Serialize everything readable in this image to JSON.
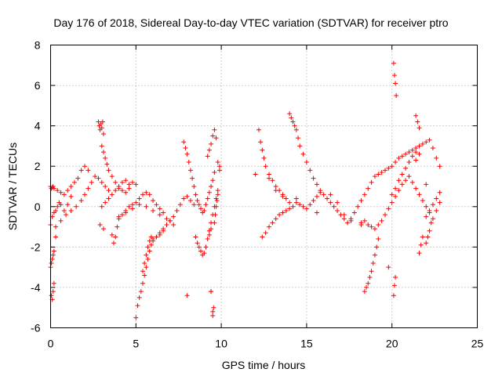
{
  "chart_data": {
    "type": "scatter",
    "title": "Day 176 of 2018, Sidereal Day-to-day VTEC variation (SDTVAR) for receiver ptro",
    "xlabel": "GPS time / hours",
    "ylabel": "SDTVAR / TECUs",
    "xlim": [
      0,
      25
    ],
    "ylim": [
      -6,
      8
    ],
    "x_ticks": [
      0,
      5,
      10,
      15,
      20,
      25
    ],
    "y_ticks": [
      -6,
      -4,
      -2,
      0,
      2,
      4,
      6,
      8
    ],
    "x_tick_labels": [
      "0",
      "5",
      "10",
      "15",
      "20",
      "25"
    ],
    "y_tick_labels": [
      "-6",
      "-4",
      "-2",
      "0",
      "2",
      "4",
      "6",
      "8"
    ],
    "grid": true,
    "marker": "+",
    "series": [
      {
        "name": "SDTVAR",
        "color": "#ff0000",
        "x": [
          0.0,
          0.05,
          0.1,
          0.15,
          0.2,
          0.1,
          0.15,
          0.05,
          0.2,
          0.3,
          0.1,
          0.2,
          0.3,
          0.4,
          0.5,
          0.6,
          0.8,
          1.0,
          1.2,
          0.0,
          0.2,
          0.4,
          0.6,
          0.8,
          1.0,
          1.2,
          1.4,
          1.6,
          1.8,
          2.0,
          2.2,
          0.0,
          0.3,
          0.6,
          0.9,
          1.2,
          1.5,
          1.8,
          2.0,
          2.2,
          2.4,
          2.6,
          2.8,
          3.0,
          3.2,
          3.4,
          2.8,
          2.85,
          2.9,
          2.95,
          3.0,
          3.05,
          3.1,
          3.0,
          3.1,
          3.2,
          3.3,
          3.4,
          3.6,
          3.8,
          4.0,
          4.2,
          4.4,
          4.6,
          3.0,
          3.2,
          3.4,
          3.6,
          3.8,
          4.0,
          4.2,
          4.4,
          4.6,
          4.8,
          5.0,
          3.6,
          3.7,
          3.8,
          3.9,
          4.0,
          4.2,
          4.4,
          4.6,
          4.8,
          5.0,
          5.2,
          5.4,
          5.6,
          5.8,
          6.0,
          6.2,
          6.4,
          6.6,
          4.0,
          4.4,
          4.8,
          5.2,
          5.6,
          6.0,
          6.4,
          6.8,
          7.2,
          5.0,
          5.1,
          5.2,
          5.3,
          5.4,
          5.5,
          5.6,
          5.7,
          5.8,
          5.9,
          6.0,
          6.2,
          6.4,
          6.6,
          6.8,
          7.0,
          5.4,
          5.5,
          5.6,
          5.7,
          5.8,
          5.9,
          6.0,
          6.2,
          6.4,
          6.6,
          6.8,
          7.0,
          7.2,
          7.4,
          7.6,
          7.8,
          8.0,
          8.2,
          8.4,
          7.8,
          7.9,
          8.0,
          8.1,
          8.2,
          8.3,
          8.4,
          8.5,
          8.6,
          8.7,
          8.8,
          8.9,
          9.0,
          9.1,
          9.2,
          9.3,
          9.4,
          9.5,
          9.6,
          8.5,
          8.6,
          8.7,
          8.8,
          8.9,
          9.0,
          9.1,
          9.2,
          9.3,
          9.4,
          9.5,
          9.6,
          9.7,
          9.8,
          9.2,
          9.3,
          9.4,
          9.5,
          9.6,
          9.7,
          9.8,
          9.9,
          9.4,
          9.5,
          9.55,
          9.6,
          9.65,
          9.7,
          9.75,
          9.8,
          9.9,
          12.2,
          12.3,
          12.4,
          12.5,
          12.6,
          12.8,
          13.0,
          13.2,
          13.4,
          13.6,
          13.8,
          14.0,
          12.4,
          12.6,
          12.8,
          13.0,
          13.2,
          13.4,
          13.6,
          13.8,
          14.0,
          14.2,
          14.4,
          14.6,
          14.8,
          15.0,
          15.2,
          15.4,
          15.6,
          15.8,
          14.0,
          14.1,
          14.2,
          14.3,
          14.4,
          14.5,
          14.6,
          14.8,
          15.0,
          15.2,
          15.4,
          15.6,
          15.8,
          16.0,
          16.2,
          16.4,
          16.6,
          16.8,
          17.0,
          17.2,
          17.4,
          17.6,
          17.8,
          18.0,
          18.2,
          18.4,
          18.6,
          18.8,
          19.0,
          19.2,
          19.4,
          19.6,
          19.8,
          20.0,
          20.2,
          20.4,
          20.6,
          20.8,
          21.0,
          21.2,
          21.4,
          21.6,
          21.8,
          22.0,
          22.2,
          22.4,
          22.6,
          22.8,
          18.2,
          18.4,
          18.6,
          18.8,
          19.0,
          19.2,
          19.4,
          19.6,
          19.8,
          20.0,
          20.2,
          20.4,
          20.6,
          20.8,
          21.0,
          21.2,
          21.4,
          21.6,
          21.8,
          22.0,
          22.2,
          22.4,
          22.6,
          22.8,
          18.4,
          18.5,
          18.6,
          18.7,
          18.8,
          18.9,
          19.0,
          19.1,
          19.2,
          20.1,
          20.15,
          20.2,
          20.25,
          20.1,
          20.15,
          20.2,
          21.4,
          21.5,
          21.6,
          20.0,
          20.2,
          20.4,
          20.6,
          20.8,
          21.0,
          21.2,
          21.4,
          21.6,
          22.0,
          22.2,
          22.4,
          22.6,
          22.8,
          22.0,
          22.1,
          22.2,
          22.3,
          21.6,
          21.7,
          21.8,
          12.0,
          12.8,
          13.2,
          13.6,
          14.4,
          15.6,
          16.4,
          16.8,
          17.2,
          17.6,
          18.2,
          0.05,
          0.1,
          0.15,
          2.9,
          3.1,
          9.3,
          9.4,
          8.0,
          9.4,
          9.5,
          19.8,
          21.4,
          22.0
        ],
        "y": [
          -3.0,
          -2.8,
          -2.6,
          -2.4,
          -2.2,
          -4.6,
          -4.2,
          -4.4,
          -3.8,
          -1.5,
          -0.5,
          -0.3,
          -0.2,
          0.0,
          0.2,
          0.1,
          -0.2,
          0.1,
          0.5,
          1.0,
          0.9,
          0.8,
          0.7,
          0.6,
          0.8,
          1.0,
          1.2,
          1.4,
          1.8,
          2.0,
          1.8,
          -0.9,
          -1.0,
          -0.7,
          -0.4,
          -0.2,
          0.0,
          0.3,
          0.6,
          0.9,
          1.2,
          1.5,
          1.4,
          1.2,
          1.0,
          0.8,
          4.2,
          4.0,
          3.8,
          4.1,
          3.9,
          4.2,
          3.6,
          3.0,
          2.7,
          2.4,
          2.1,
          1.8,
          1.5,
          1.2,
          0.9,
          0.8,
          0.7,
          0.9,
          0.0,
          0.2,
          0.4,
          0.6,
          0.8,
          1.0,
          1.2,
          1.3,
          1.1,
          1.2,
          1.1,
          -1.4,
          -1.8,
          -1.5,
          -1.0,
          -0.6,
          -0.4,
          -0.2,
          0.0,
          0.1,
          0.2,
          0.4,
          0.6,
          0.7,
          0.6,
          0.3,
          0.1,
          -0.1,
          -0.3,
          -0.5,
          -0.3,
          -0.1,
          0.1,
          0.0,
          -0.2,
          -0.4,
          -0.6,
          -0.9,
          -5.5,
          -4.9,
          -4.5,
          -4.2,
          -3.8,
          -3.4,
          -3.0,
          -2.6,
          -2.2,
          -1.9,
          -1.7,
          -1.5,
          -1.3,
          -1.1,
          -0.9,
          -0.7,
          -3.2,
          -2.8,
          -2.4,
          -2.0,
          -1.7,
          -1.5,
          -1.6,
          -1.5,
          -1.4,
          -1.2,
          -0.9,
          -0.7,
          -0.5,
          -0.2,
          0.1,
          0.4,
          0.5,
          0.3,
          0.1,
          3.2,
          2.9,
          2.6,
          2.2,
          1.8,
          1.4,
          1.0,
          0.6,
          0.3,
          0.1,
          -0.1,
          -0.3,
          -0.2,
          0.1,
          0.4,
          0.7,
          1.0,
          1.3,
          1.7,
          -1.5,
          -1.8,
          -2.0,
          -2.2,
          -2.4,
          -2.3,
          -2.0,
          -1.6,
          -1.2,
          -0.8,
          -0.4,
          0.0,
          0.4,
          0.8,
          2.5,
          2.8,
          3.1,
          3.5,
          3.8,
          3.4,
          2.2,
          1.8,
          -4.2,
          -5.2,
          -5.0,
          -0.8,
          -0.4,
          0.0,
          0.3,
          0.6,
          2.0,
          3.8,
          3.2,
          2.8,
          2.4,
          2.0,
          1.6,
          1.3,
          1.0,
          0.8,
          0.6,
          0.4,
          0.2,
          -1.5,
          -1.3,
          -1.0,
          -0.8,
          -0.6,
          -0.4,
          -0.3,
          -0.2,
          -0.1,
          0.0,
          0.2,
          0.1,
          0.0,
          -0.1,
          0.1,
          0.3,
          0.5,
          0.7,
          4.6,
          4.4,
          4.2,
          4.0,
          3.8,
          3.4,
          3.0,
          2.6,
          2.2,
          1.8,
          1.4,
          1.1,
          0.8,
          0.6,
          0.4,
          0.2,
          0.0,
          -0.2,
          -0.4,
          -0.6,
          -0.8,
          -0.6,
          -0.3,
          0.0,
          0.3,
          0.6,
          0.9,
          1.2,
          1.5,
          1.6,
          1.7,
          1.8,
          1.9,
          2.0,
          2.2,
          2.4,
          2.5,
          2.6,
          2.7,
          2.8,
          2.9,
          3.0,
          3.1,
          3.2,
          3.3,
          2.9,
          2.4,
          2.0,
          -0.8,
          -0.7,
          -0.9,
          -1.0,
          -1.1,
          -0.9,
          -0.7,
          -0.4,
          -0.1,
          0.2,
          0.5,
          0.8,
          1.1,
          1.3,
          1.5,
          1.2,
          0.9,
          0.6,
          0.3,
          0.0,
          -0.3,
          -0.6,
          -0.2,
          0.2,
          -4.2,
          -4.0,
          -3.8,
          -3.5,
          -3.2,
          -2.8,
          -2.4,
          -2.0,
          -1.6,
          7.1,
          6.5,
          6.1,
          5.5,
          -4.4,
          -3.9,
          -3.5,
          4.5,
          4.2,
          3.9,
          0.6,
          0.9,
          1.3,
          1.6,
          1.9,
          2.2,
          2.5,
          2.7,
          2.6,
          -0.5,
          -0.2,
          0.1,
          0.4,
          0.7,
          -1.8,
          -1.5,
          -1.2,
          -0.8,
          -2.3,
          -1.9,
          -1.5,
          1.6,
          1.4,
          0.8,
          0.5,
          0.4,
          -0.3,
          0.6,
          0.2,
          -0.4,
          -0.7,
          -0.9,
          0.9,
          0.95,
          1.0,
          -0.9,
          -1.1,
          -1.4,
          -1.1,
          -4.4,
          -4.2,
          -5.4,
          -3.0,
          2.3,
          1.1
        ]
      }
    ]
  }
}
